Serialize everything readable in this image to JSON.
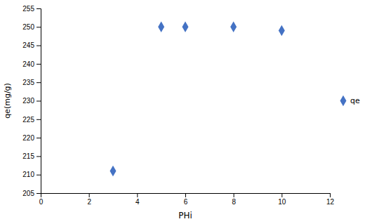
{
  "chart_data": {
    "type": "scatter",
    "xlabel": "PHi",
    "ylabel": "qe(mg/g)",
    "x": [
      3,
      5,
      6,
      8,
      10
    ],
    "series": [
      {
        "name": "qe",
        "color": "#4472C4",
        "values": [
          211,
          250,
          250,
          250,
          249
        ]
      }
    ],
    "marker": "diamond",
    "xlim": [
      0,
      12
    ],
    "ylim": [
      205,
      255
    ],
    "xticks": [
      0,
      2,
      4,
      6,
      8,
      10,
      12
    ],
    "yticks": [
      205,
      210,
      215,
      220,
      225,
      230,
      235,
      240,
      245,
      250,
      255
    ],
    "grid": false,
    "legend": "right"
  }
}
